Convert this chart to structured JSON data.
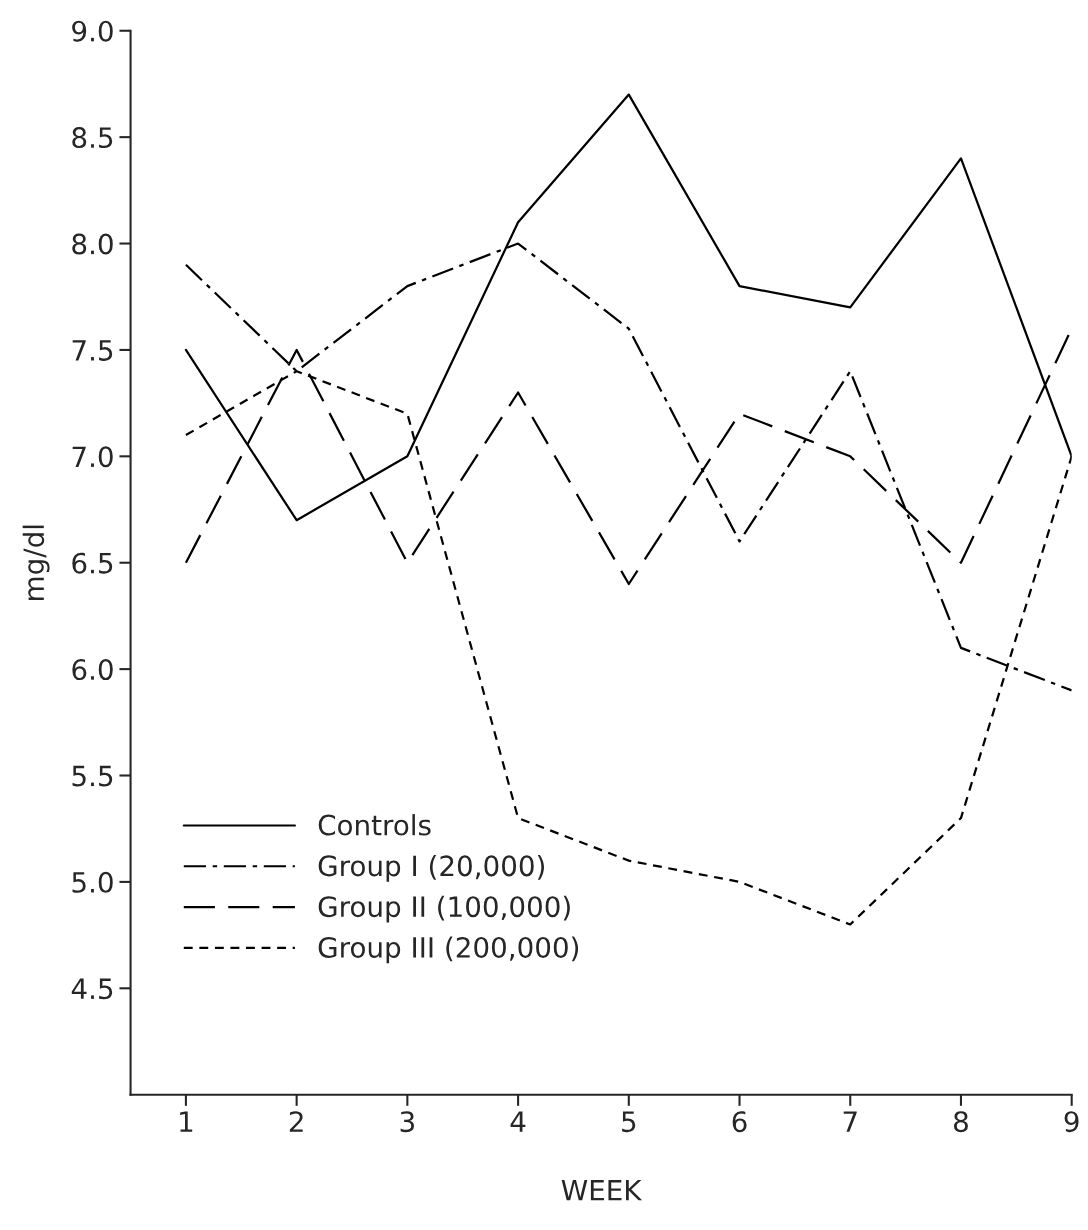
{
  "chart_data": {
    "type": "line",
    "xlabel": "WEEK",
    "ylabel": "mg/dl",
    "x": [
      1,
      2,
      3,
      4,
      5,
      6,
      7,
      8,
      9
    ],
    "series": [
      {
        "name": "Controls",
        "color": "#000000",
        "line_style": "solid",
        "values": [
          7.5,
          6.7,
          7.0,
          8.1,
          8.7,
          7.8,
          7.7,
          8.4,
          7.0
        ]
      },
      {
        "name": "Group I (20,000)",
        "color": "#000000",
        "line_style": "dashdot",
        "values": [
          7.9,
          7.4,
          7.8,
          8.0,
          7.6,
          6.6,
          7.4,
          6.1,
          5.9
        ]
      },
      {
        "name": "Group II (100,000)",
        "color": "#000000",
        "line_style": "longdash",
        "values": [
          6.5,
          7.5,
          6.5,
          7.3,
          6.4,
          7.2,
          7.0,
          6.5,
          7.6
        ]
      },
      {
        "name": "Group III (200,000)",
        "color": "#000000",
        "line_style": "shortdash",
        "values": [
          7.1,
          7.4,
          7.2,
          5.3,
          5.1,
          5.0,
          4.8,
          5.3,
          7.0
        ]
      }
    ],
    "xlim": [
      0.5,
      9
    ],
    "xticks": [
      1,
      2,
      3,
      4,
      5,
      6,
      7,
      8,
      9
    ],
    "ylim": [
      4.0,
      9.0
    ],
    "yticks": [
      4.5,
      {
        "value": 5,
        "label": "5.0"
      },
      5.5,
      {
        "value": 6,
        "label": "6.0"
      },
      6.5,
      {
        "value": 7,
        "label": "7.0"
      },
      7.5,
      {
        "value": 8,
        "label": "8.0"
      },
      8.5,
      {
        "value": 9,
        "label": "9.0"
      }
    ],
    "grid": false,
    "legend": "bottom left",
    "marker": "none"
  }
}
